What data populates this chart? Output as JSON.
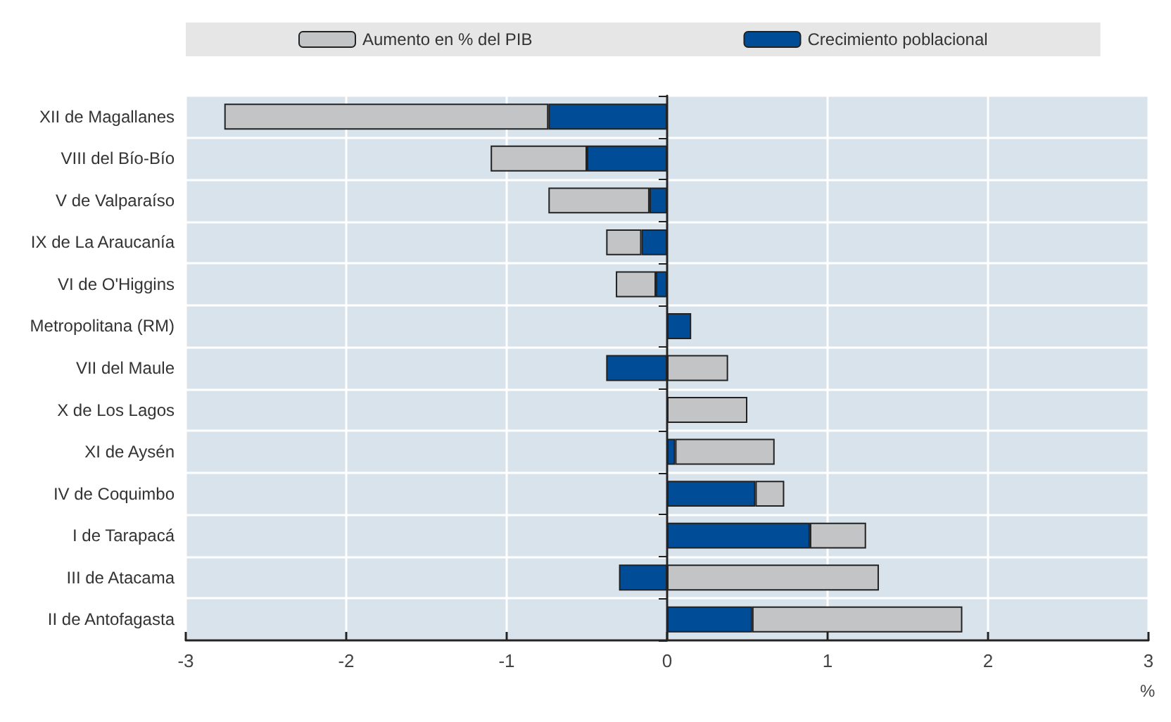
{
  "chart_data": {
    "type": "bar",
    "orientation": "horizontal",
    "stacked": true,
    "xlabel": "%",
    "categories": [
      "XII de Magallanes",
      "VIII del Bío-Bío",
      "V de Valparaíso",
      "IX de La Araucanía",
      "VI de O'Higgins",
      "Metropolitana (RM)",
      "VII del Maule",
      "X de Los Lagos",
      "XI de Aysén",
      "IV de Coquimbo",
      "I de Tarapacá",
      "III de Atacama",
      "II de Antofagasta"
    ],
    "series": [
      {
        "name": "Crecimiento poblacional",
        "color": "#004c97",
        "values": [
          -0.74,
          -0.5,
          -0.11,
          -0.16,
          -0.07,
          0.15,
          -0.38,
          null,
          0.05,
          0.55,
          0.89,
          -0.3,
          0.53
        ]
      },
      {
        "name": "Aumento en % del PIB",
        "color": "#c3c4c6",
        "values": [
          -2.02,
          -0.6,
          -0.63,
          -0.22,
          -0.25,
          null,
          0.38,
          0.5,
          0.62,
          0.18,
          0.35,
          1.32,
          1.31
        ]
      }
    ],
    "xlim": [
      -3,
      3
    ],
    "xticks": [
      -3,
      -2,
      -1,
      0,
      1,
      2,
      3
    ],
    "grid": true,
    "legend": "top"
  }
}
